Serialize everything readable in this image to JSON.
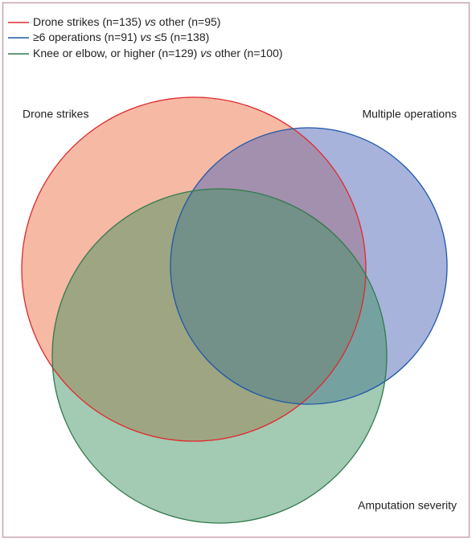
{
  "legend": [
    {
      "before": "Drone strikes (n=135) ",
      "vs": "vs",
      "after": " other (n=95)"
    },
    {
      "before": "≥6 operations (n=91) ",
      "vs": "vs",
      "after": " ≤5 (n=138)"
    },
    {
      "before": "Knee or elbow, or higher (n=129) ",
      "vs": "vs",
      "after": " other (n=100)"
    }
  ],
  "sets": [
    "Drone strikes",
    "Multiple operations",
    "Amputation severity"
  ]
}
